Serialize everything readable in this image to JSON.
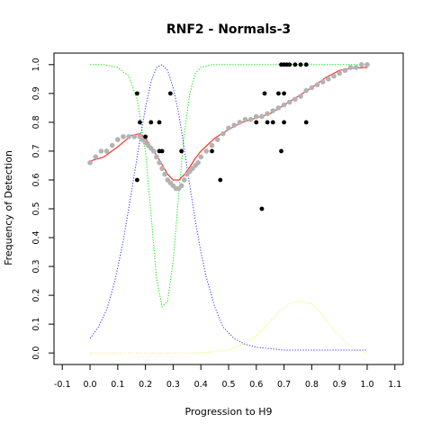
{
  "chart_data": {
    "type": "scatter",
    "title": "RNF2 - Normals-3",
    "xlabel": "Progression to H9",
    "ylabel": "Frequency of Detection",
    "xlim": [
      -0.13,
      1.13
    ],
    "ylim": [
      -0.04,
      1.04
    ],
    "x_ticks": [
      "-0.1",
      "0.0",
      "0.1",
      "0.2",
      "0.3",
      "0.4",
      "0.5",
      "0.6",
      "0.7",
      "0.8",
      "0.9",
      "1.0",
      "1.1"
    ],
    "y_ticks": [
      "0.0",
      "0.1",
      "0.2",
      "0.3",
      "0.4",
      "0.5",
      "0.6",
      "0.7",
      "0.8",
      "0.9",
      "1.0"
    ],
    "grid": false,
    "colors": {
      "observed": "#000000",
      "fitted": "#b3b3b3",
      "smooth": "#ff3030",
      "green_curve": "#00e000",
      "blue_curve": "#3030ff",
      "yellow_curve": "#f0f050"
    },
    "series": [
      {
        "role": "observed-points",
        "x": [
          0.17,
          0.17,
          0.18,
          0.2,
          0.22,
          0.25,
          0.25,
          0.26,
          0.29,
          0.33,
          0.44,
          0.47,
          0.6,
          0.62,
          0.63,
          0.64,
          0.66,
          0.68,
          0.69,
          0.69,
          0.7,
          0.7,
          0.7,
          0.71,
          0.72,
          0.74,
          0.76,
          0.78,
          0.78
        ],
        "y": [
          0.9,
          0.6,
          0.8,
          0.75,
          0.8,
          0.7,
          0.8,
          0.7,
          0.9,
          0.7,
          0.7,
          0.6,
          0.8,
          0.5,
          0.9,
          0.8,
          0.8,
          0.9,
          0.7,
          1.0,
          0.8,
          0.9,
          1.0,
          1.0,
          1.0,
          1.0,
          1.0,
          1.0,
          0.8
        ]
      },
      {
        "role": "fitted-points",
        "x": [
          0.0,
          0.02,
          0.04,
          0.06,
          0.08,
          0.1,
          0.12,
          0.14,
          0.16,
          0.18,
          0.19,
          0.2,
          0.21,
          0.22,
          0.23,
          0.24,
          0.25,
          0.26,
          0.27,
          0.28,
          0.29,
          0.3,
          0.31,
          0.32,
          0.33,
          0.34,
          0.35,
          0.36,
          0.37,
          0.38,
          0.39,
          0.4,
          0.42,
          0.44,
          0.46,
          0.48,
          0.5,
          0.52,
          0.54,
          0.56,
          0.58,
          0.6,
          0.62,
          0.64,
          0.66,
          0.68,
          0.7,
          0.72,
          0.74,
          0.76,
          0.78,
          0.8,
          0.82,
          0.84,
          0.86,
          0.88,
          0.9,
          0.92,
          0.94,
          0.96,
          0.98,
          1.0
        ],
        "y": [
          0.66,
          0.68,
          0.7,
          0.7,
          0.72,
          0.74,
          0.75,
          0.75,
          0.75,
          0.75,
          0.74,
          0.73,
          0.72,
          0.71,
          0.7,
          0.68,
          0.66,
          0.64,
          0.62,
          0.6,
          0.59,
          0.58,
          0.57,
          0.57,
          0.58,
          0.6,
          0.62,
          0.63,
          0.64,
          0.65,
          0.66,
          0.68,
          0.7,
          0.72,
          0.74,
          0.76,
          0.78,
          0.79,
          0.8,
          0.81,
          0.81,
          0.82,
          0.82,
          0.83,
          0.84,
          0.85,
          0.86,
          0.87,
          0.88,
          0.89,
          0.91,
          0.92,
          0.93,
          0.94,
          0.95,
          0.96,
          0.97,
          0.98,
          0.99,
          0.99,
          1.0,
          1.0
        ]
      },
      {
        "role": "smoothed-curve",
        "x": [
          0.0,
          0.05,
          0.1,
          0.15,
          0.18,
          0.2,
          0.22,
          0.25,
          0.28,
          0.3,
          0.32,
          0.34,
          0.36,
          0.38,
          0.4,
          0.45,
          0.5,
          0.55,
          0.6,
          0.65,
          0.7,
          0.75,
          0.8,
          0.85,
          0.9,
          0.95,
          1.0
        ],
        "y": [
          0.665,
          0.68,
          0.715,
          0.755,
          0.76,
          0.745,
          0.715,
          0.67,
          0.62,
          0.6,
          0.6,
          0.618,
          0.645,
          0.675,
          0.7,
          0.745,
          0.775,
          0.8,
          0.815,
          0.83,
          0.86,
          0.89,
          0.92,
          0.955,
          0.98,
          0.988,
          0.99
        ]
      },
      {
        "role": "green-curve",
        "x": [
          0.0,
          0.05,
          0.1,
          0.14,
          0.17,
          0.2,
          0.22,
          0.24,
          0.26,
          0.28,
          0.3,
          0.32,
          0.34,
          0.36,
          0.38,
          0.4,
          0.44,
          0.5,
          0.6,
          0.8,
          1.0
        ],
        "y": [
          1.0,
          1.0,
          0.99,
          0.96,
          0.88,
          0.7,
          0.48,
          0.26,
          0.16,
          0.18,
          0.32,
          0.55,
          0.76,
          0.9,
          0.97,
          0.99,
          1.0,
          1.0,
          1.0,
          1.0,
          1.0
        ]
      },
      {
        "role": "blue-curve",
        "x": [
          0.0,
          0.03,
          0.06,
          0.09,
          0.12,
          0.15,
          0.18,
          0.2,
          0.22,
          0.24,
          0.26,
          0.28,
          0.3,
          0.32,
          0.34,
          0.36,
          0.38,
          0.4,
          0.42,
          0.45,
          0.48,
          0.52,
          0.56,
          0.6,
          0.7,
          0.8,
          0.9,
          1.0
        ],
        "y": [
          0.05,
          0.09,
          0.15,
          0.25,
          0.39,
          0.56,
          0.74,
          0.85,
          0.94,
          0.99,
          1.0,
          0.98,
          0.92,
          0.83,
          0.71,
          0.58,
          0.46,
          0.35,
          0.26,
          0.16,
          0.09,
          0.05,
          0.03,
          0.02,
          0.01,
          0.01,
          0.01,
          0.01
        ]
      },
      {
        "role": "yellow-curve",
        "x": [
          0.0,
          0.2,
          0.4,
          0.5,
          0.55,
          0.6,
          0.64,
          0.68,
          0.72,
          0.76,
          0.8,
          0.84,
          0.88,
          0.92,
          0.96,
          1.0
        ],
        "y": [
          0.0,
          0.0,
          0.0,
          0.01,
          0.03,
          0.06,
          0.1,
          0.14,
          0.17,
          0.18,
          0.17,
          0.13,
          0.08,
          0.04,
          0.01,
          0.0
        ]
      }
    ]
  }
}
